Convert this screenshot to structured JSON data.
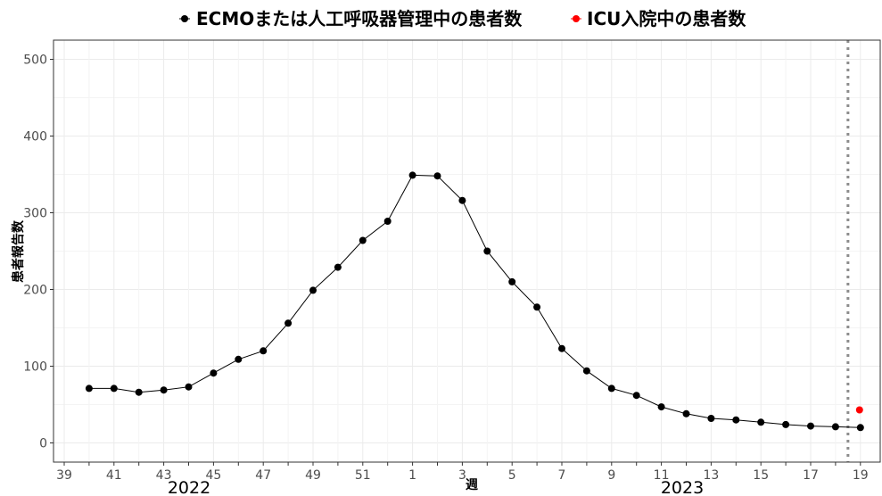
{
  "chart_data": {
    "type": "line",
    "xlabel": "週",
    "ylabel": "患者報告数",
    "ylim": [
      -25,
      525
    ],
    "yticks": [
      0,
      100,
      200,
      300,
      400,
      500
    ],
    "week_sequence": [
      39,
      40,
      41,
      42,
      43,
      44,
      45,
      46,
      47,
      48,
      49,
      50,
      51,
      52,
      1,
      2,
      3,
      4,
      5,
      6,
      7,
      8,
      9,
      10,
      11,
      12,
      13,
      14,
      15,
      16,
      17,
      18,
      19
    ],
    "xtick_labels": [
      "39",
      "41",
      "43",
      "45",
      "47",
      "49",
      "51",
      "1",
      "3",
      "5",
      "7",
      "9",
      "11",
      "13",
      "15",
      "17",
      "19"
    ],
    "year_labels": [
      "2022",
      "2023"
    ],
    "reference_line_week": "18.5",
    "grid": true,
    "legend_position": "top",
    "series": [
      {
        "name": "ECMOまたは人工呼吸器管理中の患者数",
        "color": "#000000",
        "x": [
          "40",
          "41",
          "42",
          "43",
          "44",
          "45",
          "46",
          "47",
          "48",
          "49",
          "50",
          "51",
          "52",
          "1",
          "2",
          "3",
          "4",
          "5",
          "6",
          "7",
          "8",
          "9",
          "10",
          "11",
          "12",
          "13",
          "14",
          "15",
          "16",
          "17",
          "18",
          "19"
        ],
        "values": [
          71,
          71,
          66,
          69,
          73,
          91,
          109,
          120,
          156,
          199,
          229,
          264,
          289,
          349,
          348,
          316,
          250,
          210,
          177,
          123,
          94,
          71,
          62,
          47,
          38,
          32,
          30,
          27,
          24,
          22,
          21,
          20
        ]
      },
      {
        "name": "ICU入院中の患者数",
        "color": "#ff0000",
        "x": [
          "19"
        ],
        "values": [
          43
        ]
      }
    ]
  }
}
